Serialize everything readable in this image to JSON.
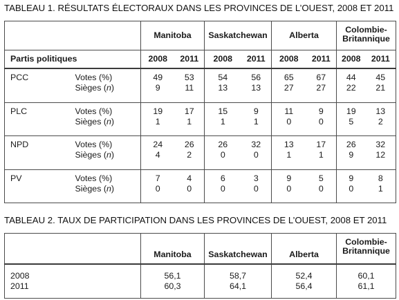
{
  "table1": {
    "caption": "TABLEAU 1. RÉSULTATS ÉLECTORAUX DANS LES PROVINCES DE L’OUEST, 2008 ET 2011",
    "provinces": [
      "Manitoba",
      "Saskatchewan",
      "Alberta",
      "Colombie-\nBritannique"
    ],
    "years": [
      "2008",
      "2011"
    ],
    "parties_header": "Partis politiques",
    "row_labels": [
      "Votes (%)",
      "Sièges (n)"
    ],
    "rows": [
      {
        "party": "PCC",
        "votes": [
          "49",
          "53",
          "54",
          "56",
          "65",
          "67",
          "44",
          "45"
        ],
        "seats": [
          "9",
          "11",
          "13",
          "13",
          "27",
          "27",
          "22",
          "21"
        ]
      },
      {
        "party": "PLC",
        "votes": [
          "19",
          "17",
          "15",
          "9",
          "11",
          "9",
          "19",
          "13"
        ],
        "seats": [
          "1",
          "1",
          "1",
          "1",
          "0",
          "0",
          "5",
          "2"
        ]
      },
      {
        "party": "NPD",
        "votes": [
          "24",
          "26",
          "26",
          "32",
          "13",
          "17",
          "26",
          "32"
        ],
        "seats": [
          "4",
          "2",
          "0",
          "0",
          "1",
          "1",
          "9",
          "12"
        ]
      },
      {
        "party": "PV",
        "votes": [
          "7",
          "4",
          "6",
          "3",
          "9",
          "5",
          "9",
          "8"
        ],
        "seats": [
          "0",
          "0",
          "0",
          "0",
          "0",
          "0",
          "0",
          "1"
        ]
      }
    ]
  },
  "table2": {
    "caption": "TABLEAU 2. TAUX DE PARTICIPATION DANS LES PROVINCES DE L’OUEST, 2008 ET 2011",
    "provinces": [
      "Manitoba",
      "Saskatchewan",
      "Alberta",
      "Colombie-\nBritannique"
    ],
    "rows": [
      {
        "year": "2008",
        "values": [
          "56,1",
          "58,7",
          "52,4",
          "60,1"
        ]
      },
      {
        "year": "2011",
        "values": [
          "60,3",
          "64,1",
          "56,4",
          "61,1"
        ]
      }
    ]
  }
}
